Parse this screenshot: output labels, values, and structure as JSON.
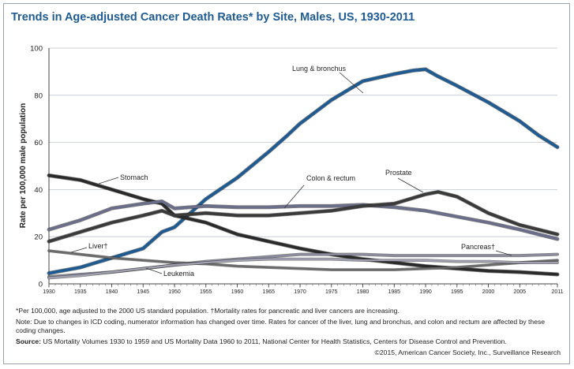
{
  "chart_data": {
    "type": "line",
    "title": "Trends in Age-adjusted Cancer Death Rates* by Site, Males, US, 1930-2011",
    "ylabel": "Rate per 100,000 male population",
    "xlabel": "",
    "xlim": [
      1930,
      2011
    ],
    "ylim": [
      0,
      100
    ],
    "x_ticks": [
      "1930",
      "1935",
      "1940",
      "1945",
      "1950",
      "1955",
      "1960",
      "1965",
      "1970",
      "1975",
      "1980",
      "1985",
      "1990",
      "1995",
      "2000",
      "2005",
      "2011"
    ],
    "x_tick_values": [
      1930,
      1935,
      1940,
      1945,
      1950,
      1955,
      1960,
      1965,
      1970,
      1975,
      1980,
      1985,
      1990,
      1995,
      2000,
      2005,
      2011
    ],
    "y_ticks": [
      "0",
      "20",
      "40",
      "60",
      "80",
      "100"
    ],
    "y_tick_values": [
      0,
      20,
      40,
      60,
      80,
      100
    ],
    "grid": "horizontal",
    "series": [
      {
        "name": "Lung & bronchus",
        "color": "#1f5b93",
        "x": [
          1930,
          1935,
          1940,
          1945,
          1948,
          1950,
          1955,
          1960,
          1965,
          1968,
          1970,
          1975,
          1980,
          1985,
          1988,
          1990,
          1992,
          1995,
          2000,
          2005,
          2008,
          2011
        ],
        "y": [
          4.5,
          7,
          11,
          15,
          22,
          24,
          36,
          45,
          56,
          63,
          68,
          78,
          86,
          89,
          90.5,
          91,
          88,
          84,
          77,
          69,
          63,
          58
        ]
      },
      {
        "name": "Stomach",
        "color": "#2a2a2a",
        "x": [
          1930,
          1935,
          1940,
          1945,
          1948,
          1950,
          1955,
          1960,
          1965,
          1970,
          1975,
          1980,
          1985,
          1990,
          1995,
          2000,
          2005,
          2011
        ],
        "y": [
          46,
          44,
          40,
          36,
          34,
          29,
          26,
          21,
          18,
          15,
          12.5,
          10.5,
          9,
          7.5,
          6.5,
          5.5,
          5,
          4
        ]
      },
      {
        "name": "Colon & rectum",
        "color": "#6b6e8a",
        "x": [
          1930,
          1935,
          1940,
          1945,
          1948,
          1950,
          1955,
          1960,
          1965,
          1970,
          1975,
          1980,
          1985,
          1990,
          1995,
          2000,
          2005,
          2011
        ],
        "y": [
          23,
          27,
          32,
          34,
          35,
          32,
          33,
          32.5,
          32.5,
          33,
          33,
          33.5,
          32.5,
          31,
          28.5,
          26,
          23,
          19
        ]
      },
      {
        "name": "Prostate",
        "color": "#3a3a3a",
        "x": [
          1930,
          1935,
          1940,
          1945,
          1948,
          1950,
          1955,
          1960,
          1965,
          1970,
          1975,
          1980,
          1985,
          1990,
          1992,
          1995,
          2000,
          2005,
          2011
        ],
        "y": [
          18,
          22,
          26,
          29,
          31,
          29,
          30,
          29,
          29,
          30,
          31,
          33,
          34,
          38,
          39,
          37,
          30,
          25,
          21
        ]
      },
      {
        "name": "Pancreas†",
        "color": "#8c8c9e",
        "x": [
          1930,
          1935,
          1940,
          1945,
          1950,
          1955,
          1960,
          1965,
          1970,
          1975,
          1980,
          1985,
          1990,
          1995,
          2000,
          2005,
          2011
        ],
        "y": [
          3,
          4,
          5,
          6.5,
          8,
          9.5,
          10.5,
          11.5,
          12.5,
          12.5,
          12.5,
          12,
          12,
          12,
          12,
          12,
          12.5
        ]
      },
      {
        "name": "Liver†",
        "color": "#6a6a6a",
        "x": [
          1930,
          1935,
          1940,
          1945,
          1950,
          1955,
          1960,
          1965,
          1970,
          1975,
          1980,
          1985,
          1990,
          1995,
          2000,
          2005,
          2011
        ],
        "y": [
          14,
          12.5,
          11,
          10,
          9,
          8.5,
          7.5,
          7,
          6.5,
          6,
          6,
          6,
          6.5,
          7,
          8,
          9,
          10
        ]
      },
      {
        "name": "Leukemia",
        "color": "#a0a0b0",
        "x": [
          1930,
          1935,
          1940,
          1945,
          1950,
          1955,
          1960,
          1965,
          1970,
          1975,
          1980,
          1985,
          1990,
          1995,
          2000,
          2005,
          2011
        ],
        "y": [
          2.5,
          3.5,
          5,
          6.5,
          8,
          9,
          10,
          10.5,
          10.5,
          10.5,
          10,
          10,
          10,
          9.5,
          9.5,
          9,
          9
        ]
      }
    ],
    "annotations": [
      {
        "text": "Lung & bronchus",
        "for": "Lung & bronchus"
      },
      {
        "text": "Stomach",
        "for": "Stomach"
      },
      {
        "text": "Colon & rectum",
        "for": "Colon & rectum"
      },
      {
        "text": "Prostate",
        "for": "Prostate"
      },
      {
        "text": "Pancreas†",
        "for": "Pancreas†"
      },
      {
        "text": "Liver†",
        "for": "Liver†"
      },
      {
        "text": "Leukemia",
        "for": "Leukemia"
      }
    ]
  },
  "notes": {
    "footnote": "*Per 100,000, age adjusted to the 2000 US standard population. †Mortality rates for pancreatic and liver cancers are increasing.",
    "note": "Note: Due to changes in ICD coding, numerator information has changed over time. Rates for cancer of the liver, lung and bronchus, and colon and rectum are affected by these coding changes.",
    "source_label": "Source:",
    "source_text": "US Mortality Volumes 1930 to 1959 and US Mortality Data 1960 to 2011, National Center for Health Statistics, Centers for Disease Control and Prevention.",
    "copyright": "©2015, American Cancer Society, Inc., Surveillance Research"
  }
}
